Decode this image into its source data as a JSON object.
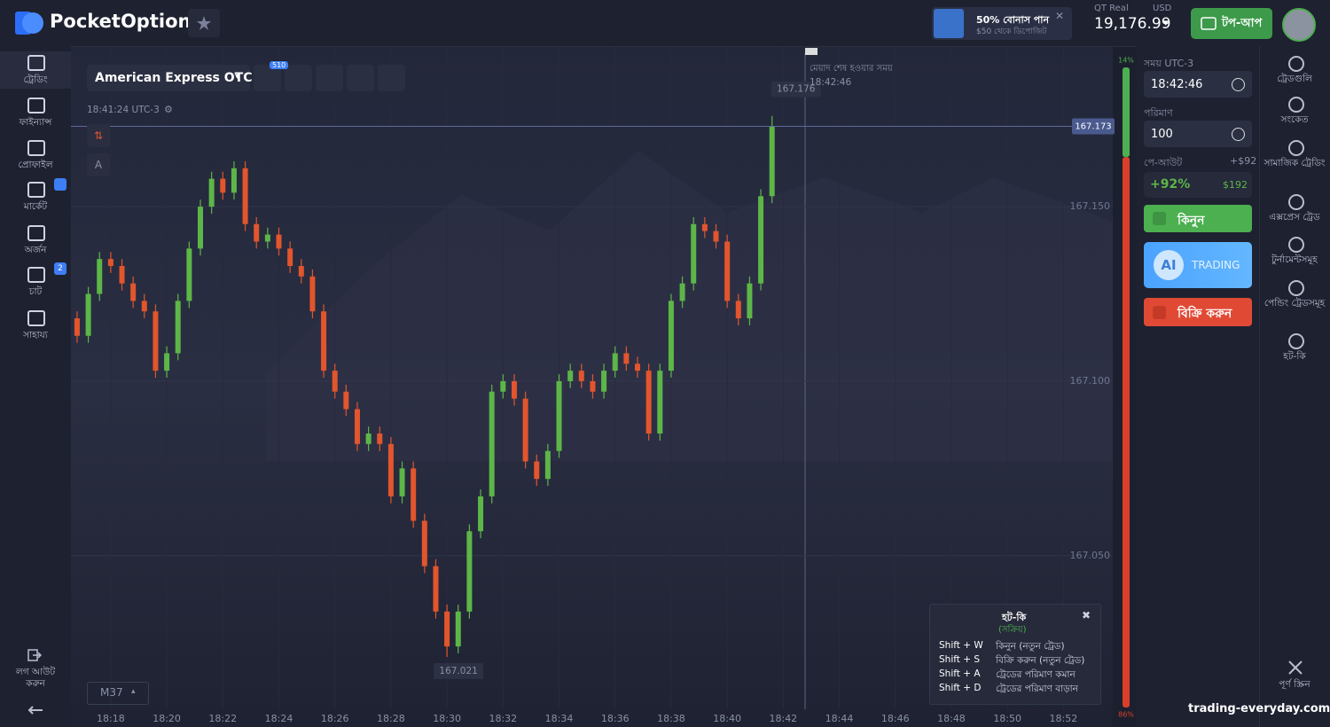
{
  "header": {
    "logo": "PocketOption",
    "bonus_title": "50% বোনাস পান",
    "bonus_subtitle": "$50 থেকে ডিপোজিট",
    "account_type": "QT Real",
    "currency": "USD",
    "balance": "19,176.99",
    "topup": "টপ-আপ"
  },
  "left_nav": {
    "items": [
      "ট্রেডিং",
      "ফাইন্যান্স",
      "প্রোফাইল",
      "মার্কেট",
      "অর্জন",
      "চাট",
      "সাহায্য"
    ],
    "chat_badge": "2",
    "logout": "লগ আউট করুন"
  },
  "toolbar": {
    "asset": "American Express OTC",
    "indicator_badge": "510",
    "server_time": "18:41:24 UTC-3",
    "drawing_label": "A",
    "timeframe": "M37"
  },
  "expiry": {
    "label": "মেয়াদ শেষ হওয়ার সময়",
    "time": "18:42:46"
  },
  "chart_data": {
    "type": "candlestick",
    "x": [
      1096.8,
      1097.2,
      1097.6,
      1098,
      1098.4,
      1098.8,
      1099.2,
      1099.6,
      1100,
      1100.4,
      1100.8,
      1101.2,
      1101.6,
      1102,
      1102.4,
      1102.8,
      1103.2,
      1103.6,
      1104,
      1104.4,
      1104.8,
      1105.2,
      1105.6,
      1106,
      1106.4,
      1106.8,
      1107.2,
      1107.6,
      1108,
      1108.4,
      1108.8,
      1109.2,
      1109.6,
      1110,
      1110.4,
      1110.8,
      1111.2,
      1111.6,
      1112,
      1112.4,
      1112.8,
      1113.2,
      1113.6,
      1114,
      1114.4,
      1114.8,
      1115.2,
      1115.6,
      1116,
      1116.4,
      1116.8,
      1117.2,
      1117.6,
      1118,
      1118.4,
      1118.8,
      1119.2,
      1119.6,
      1120,
      1120.4,
      1120.8,
      1121.2,
      1121.6
    ],
    "open": [
      167.118,
      167.113,
      167.125,
      167.135,
      167.133,
      167.128,
      167.123,
      167.12,
      167.103,
      167.108,
      167.123,
      167.138,
      167.15,
      167.158,
      167.154,
      167.161,
      167.145,
      167.14,
      167.142,
      167.138,
      167.133,
      167.13,
      167.12,
      167.103,
      167.097,
      167.092,
      167.082,
      167.085,
      167.082,
      167.067,
      167.075,
      167.06,
      167.047,
      167.034,
      167.024,
      167.034,
      167.057,
      167.067,
      167.097,
      167.1,
      167.095,
      167.077,
      167.072,
      167.08,
      167.1,
      167.103,
      167.1,
      167.097,
      167.103,
      167.108,
      167.105,
      167.103,
      167.085,
      167.103,
      167.123,
      167.128,
      167.145,
      167.143,
      167.14,
      167.123,
      167.118,
      167.128,
      167.153
    ],
    "high": [
      167.12,
      167.127,
      167.137,
      167.137,
      167.135,
      167.13,
      167.125,
      167.122,
      167.11,
      167.125,
      167.14,
      167.152,
      167.16,
      167.16,
      167.163,
      167.163,
      167.147,
      167.144,
      167.144,
      167.14,
      167.135,
      167.132,
      167.122,
      167.105,
      167.099,
      167.094,
      167.087,
      167.087,
      167.084,
      167.077,
      167.077,
      167.062,
      167.049,
      167.036,
      167.036,
      167.059,
      167.069,
      167.099,
      167.102,
      167.102,
      167.097,
      167.079,
      167.082,
      167.102,
      167.105,
      167.105,
      167.102,
      167.105,
      167.11,
      167.11,
      167.107,
      167.105,
      167.105,
      167.125,
      167.13,
      167.147,
      167.147,
      167.145,
      167.142,
      167.125,
      167.13,
      167.155,
      167.176
    ],
    "low": [
      167.111,
      167.111,
      167.123,
      167.131,
      167.126,
      167.121,
      167.118,
      167.101,
      167.101,
      167.106,
      167.121,
      167.136,
      167.148,
      167.152,
      167.152,
      167.143,
      167.138,
      167.138,
      167.136,
      167.131,
      167.128,
      167.118,
      167.101,
      167.095,
      167.09,
      167.08,
      167.08,
      167.08,
      167.065,
      167.065,
      167.058,
      167.045,
      167.032,
      167.021,
      167.022,
      167.032,
      167.055,
      167.065,
      167.095,
      167.093,
      167.075,
      167.07,
      167.07,
      167.078,
      167.098,
      167.098,
      167.095,
      167.095,
      167.101,
      167.103,
      167.101,
      167.083,
      167.083,
      167.101,
      167.121,
      167.126,
      167.141,
      167.138,
      167.121,
      167.116,
      167.116,
      167.126,
      167.151
    ],
    "close": [
      167.113,
      167.125,
      167.135,
      167.133,
      167.128,
      167.123,
      167.12,
      167.103,
      167.108,
      167.123,
      167.138,
      167.15,
      167.158,
      167.154,
      167.161,
      167.145,
      167.14,
      167.142,
      167.138,
      167.133,
      167.13,
      167.12,
      167.103,
      167.097,
      167.092,
      167.082,
      167.085,
      167.082,
      167.067,
      167.075,
      167.06,
      167.047,
      167.034,
      167.024,
      167.034,
      167.057,
      167.067,
      167.097,
      167.1,
      167.095,
      167.077,
      167.072,
      167.08,
      167.1,
      167.103,
      167.1,
      167.097,
      167.103,
      167.108,
      167.105,
      167.103,
      167.085,
      167.103,
      167.123,
      167.128,
      167.145,
      167.143,
      167.14,
      167.123,
      167.118,
      167.128,
      167.153,
      167.173
    ],
    "xlim": [
      1096.58,
      1133.76
    ],
    "ylim": [
      167.006,
      167.196
    ],
    "xticks": [
      {
        "value": 1098,
        "label": "18:18"
      },
      {
        "value": 1100,
        "label": "18:20"
      },
      {
        "value": 1102,
        "label": "18:22"
      },
      {
        "value": 1104,
        "label": "18:24"
      },
      {
        "value": 1106,
        "label": "18:26"
      },
      {
        "value": 1108,
        "label": "18:28"
      },
      {
        "value": 1110,
        "label": "18:30"
      },
      {
        "value": 1112,
        "label": "18:32"
      },
      {
        "value": 1114,
        "label": "18:34"
      },
      {
        "value": 1116,
        "label": "18:36"
      },
      {
        "value": 1118,
        "label": "18:38"
      },
      {
        "value": 1120,
        "label": "18:40"
      },
      {
        "value": 1122,
        "label": "18:42"
      },
      {
        "value": 1124,
        "label": "18:44"
      },
      {
        "value": 1126,
        "label": "18:46"
      },
      {
        "value": 1128,
        "label": "18:48"
      },
      {
        "value": 1130,
        "label": "18:50"
      },
      {
        "value": 1132,
        "label": "18:52"
      }
    ],
    "yticks": [
      {
        "value": 167.05,
        "label": "167.050"
      },
      {
        "value": 167.1,
        "label": "167.100"
      },
      {
        "value": 167.15,
        "label": "167.150"
      }
    ],
    "high_label": "167.176",
    "low_label": "167.021",
    "current_label": "167.173",
    "up_color": "#5db648",
    "down_color": "#e2552d",
    "grid": true
  },
  "sentiment": {
    "values": [
      14,
      86
    ],
    "value_labels": [
      "14%",
      "86%"
    ],
    "colors": [
      "#4caf50",
      "#d9402b"
    ]
  },
  "trade_panel": {
    "time_label": "সময় UTC-3",
    "time": "18:42:46",
    "amount_label": "পরিমাণ",
    "amount": "100",
    "payout_label": "পে-আউট",
    "payout_amount": "+$92",
    "payout_percent": "+92%",
    "payout_total": "$192",
    "buy": "কিনুন",
    "ai": "AI",
    "ai_trading": "TRADING",
    "sell": "বিক্রি করুন"
  },
  "right_nav": {
    "items": [
      "ট্রেডগুলি",
      "সংকেত",
      "সামাজিক ট্রেডিং",
      "এক্সপ্রেস ট্রেড",
      "টুর্নামেন্টসমূহ",
      "পেন্ডিং ট্রেডসমূহ",
      "হট-কি"
    ],
    "fullscreen": "পূর্ণ স্ক্রিন"
  },
  "hotkeys": {
    "title": "হট-কি",
    "status": "(সক্রিয়)",
    "rows": [
      [
        "Shift + W",
        "কিনুন (নতুন ট্রেড)"
      ],
      [
        "Shift + S",
        "বিক্রি করুন (নতুন ট্রেড)"
      ],
      [
        "Shift + A",
        "ট্রেডের পরিমাণ কমান"
      ],
      [
        "Shift + D",
        "ট্রেডের পরিমাণ বাড়ান"
      ]
    ]
  },
  "watermark": "trading-everyday.com"
}
